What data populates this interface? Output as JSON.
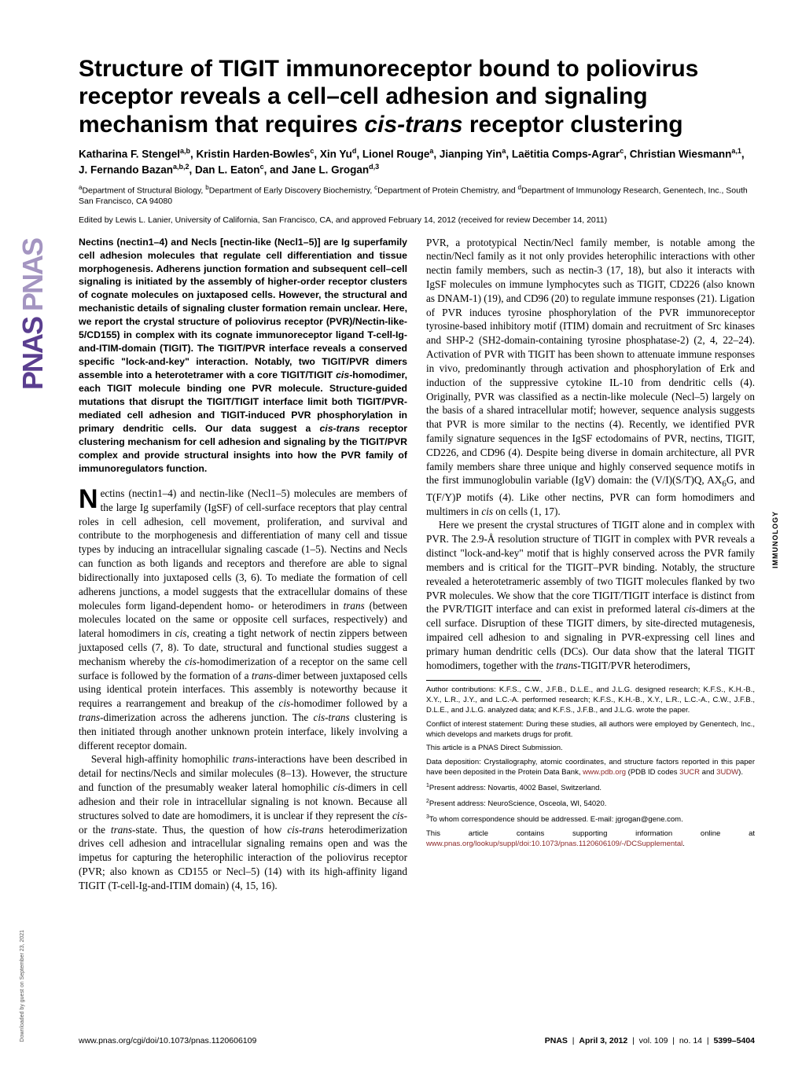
{
  "side_logo": {
    "text": "PNAS",
    "dup": "PNAS"
  },
  "title_pre": "Structure of TIGIT immunoreceptor bound to poliovirus receptor reveals a cell–cell adhesion and signaling mechanism that requires ",
  "title_ital": "cis-trans",
  "title_post": " receptor clustering",
  "authors_html": "Katharina F. Stengel<sup>a,b</sup>, Kristin Harden-Bowles<sup>c</sup>, Xin Yu<sup>d</sup>, Lionel Rouge<sup>a</sup>, Jianping Yin<sup>a</sup>, Laëtitia Comps-Agrar<sup>c</sup>, Christian Wiesmann<sup>a,1</sup>, J. Fernando Bazan<sup>a,b,2</sup>, Dan L. Eaton<sup>c</sup>, and Jane L. Grogan<sup>d,3</sup>",
  "affil_html": "<sup>a</sup>Department of Structural Biology, <sup>b</sup>Department of Early Discovery Biochemistry, <sup>c</sup>Department of Protein Chemistry, and <sup>d</sup>Department of Immunology Research, Genentech, Inc., South San Francisco, CA 94080",
  "edited": "Edited by Lewis L. Lanier, University of California, San Francisco, CA, and approved February 14, 2012 (received for review December 14, 2011)",
  "abstract_html": "Nectins (nectin1–4) and Necls [nectin-like (Necl1–5)] are Ig superfamily cell adhesion molecules that regulate cell differentiation and tissue morphogenesis. Adherens junction formation and subsequent cell–cell signaling is initiated by the assembly of higher-order receptor clusters of cognate molecules on juxtaposed cells. However, the structural and mechanistic details of signaling cluster formation remain unclear. Here, we report the crystal structure of poliovirus receptor (PVR)/Nectin-like-5/CD155) in complex with its cognate immunoreceptor ligand T-cell-Ig-and-ITIM-domain (TIGIT). The TIGIT/PVR interface reveals a conserved specific \"lock-and-key\" interaction. Notably, two TIGIT/PVR dimers assemble into a heterotetramer with a core TIGIT/TIGIT <span class='ital'>cis</span>-homodimer, each TIGIT molecule binding one PVR molecule. Structure-guided mutations that disrupt the TIGIT/TIGIT interface limit both TIGIT/PVR-mediated cell adhesion and TIGIT-induced PVR phosphorylation in primary dendritic cells. Our data suggest a <span class='ital'>cis-trans</span> receptor clustering mechanism for cell adhesion and signaling by the TIGIT/PVR complex and provide structural insights into how the PVR family of immunoregulators function.",
  "col1_body_html": "<p class='noindent'><span class='dropcap'>N</span>ectins (nectin1–4) and nectin-like (Necl1–5) molecules are members of the large Ig superfamily (IgSF) of cell-surface receptors that play central roles in cell adhesion, cell movement, proliferation, and survival and contribute to the morphogenesis and differentiation of many cell and tissue types by inducing an intracellular signaling cascade (1–5). Nectins and Necls can function as both ligands and receptors and therefore are able to signal bidirectionally into juxtaposed cells (3, 6). To mediate the formation of cell adherens junctions, a model suggests that the extracellular domains of these molecules form ligand-dependent homo- or heterodimers in <span class='ital'>trans</span> (between molecules located on the same or opposite cell surfaces, respectively) and lateral homodimers in <span class='ital'>cis</span>, creating a tight network of nectin zippers between juxtaposed cells (7, 8). To date, structural and functional studies suggest a mechanism whereby the <span class='ital'>cis</span>-homodimerization of a receptor on the same cell surface is followed by the formation of a <span class='ital'>trans</span>-dimer between juxtaposed cells using identical protein interfaces. This assembly is noteworthy because it requires a rearrangement and breakup of the <span class='ital'>cis</span>-homodimer followed by a <span class='ital'>trans</span>-dimerization across the adherens junction. The <span class='ital'>cis-trans</span> clustering is then initiated through another unknown protein interface, likely involving a different receptor domain.</p><p>Several high-affinity homophilic <span class='ital'>trans</span>-interactions have been described in detail for nectins/Necls and similar molecules (8–13). However, the structure and function of the presumably weaker lateral homophilic <span class='ital'>cis</span>-dimers in cell adhesion and their role in intracellular signaling is not known. Because all structures solved to date are homodimers, it is unclear if they represent the <span class='ital'>cis</span>- or the <span class='ital'>trans</span>-state. Thus, the question of how <span class='ital'>cis-trans</span> heterodimerization drives cell adhesion and intracellular signaling remains open and was the impetus for capturing the heterophilic interaction of the poliovirus receptor (PVR; also known as CD155 or Necl–5) (14) with its high-affinity ligand TIGIT (T-cell-Ig-and-ITIM domain) (4, 15, 16).</p>",
  "col2_body_html": "<p class='noindent'>PVR, a prototypical Nectin/Necl family member, is notable among the nectin/Necl family as it not only provides heterophilic interactions with other nectin family members, such as nectin-3 (17, 18), but also it interacts with IgSF molecules on immune lymphocytes such as TIGIT, CD226 (also known as DNAM-1) (19), and CD96 (20) to regulate immune responses (21). Ligation of PVR induces tyrosine phosphorylation of the PVR immunoreceptor tyrosine-based inhibitory motif (ITIM) domain and recruitment of Src kinases and SHP-2 (SH2-domain-containing tyrosine phosphatase-2) (2, 4, 22–24). Activation of PVR with TIGIT has been shown to attenuate immune responses in vivo, predominantly through activation and phosphorylation of Erk and induction of the suppressive cytokine IL-10 from dendritic cells (4). Originally, PVR was classified as a nectin-like molecule (Necl–5) largely on the basis of a shared intracellular motif; however, sequence analysis suggests that PVR is more similar to the nectins (4). Recently, we identified PVR family signature sequences in the IgSF ectodomains of PVR, nectins, TIGIT, CD226, and CD96 (4). Despite being diverse in domain architecture, all PVR family members share three unique and highly conserved sequence motifs in the first immunoglobulin variable (IgV) domain: the (V/I)(S/T)Q, AX<sub>6</sub>G, and T(F/Y)P motifs (4). Like other nectins, PVR can form homodimers and multimers in <span class='ital'>cis</span> on cells (1, 17).</p><p>Here we present the crystal structures of TIGIT alone and in complex with PVR. The 2.9-Å resolution structure of TIGIT in complex with PVR reveals a distinct \"lock-and-key\" motif that is highly conserved across the PVR family members and is critical for the TIGIT–PVR binding. Notably, the structure revealed a heterotetrameric assembly of two TIGIT molecules flanked by two PVR molecules. We show that the core TIGIT/TIGIT interface is distinct from the PVR/TIGIT interface and can exist in preformed lateral <span class='ital'>cis</span>-dimers at the cell surface. Disruption of these TIGIT dimers, by site-directed mutagenesis, impaired cell adhesion to and signaling in PVR-expressing cell lines and primary human dendritic cells (DCs). Our data show that the lateral TIGIT homodimers, together with the <span class='ital'>trans</span>-TIGIT/PVR heterodimers,</p>",
  "footnotes": {
    "contrib": "Author contributions: K.F.S., C.W., J.F.B., D.L.E., and J.L.G. designed research; K.F.S., K.H.-B., X.Y., L.R., J.Y., and L.C.-A. performed research; K.F.S., K.H.-B., X.Y., L.R., L.C.-A., C.W., J.F.B., D.L.E., and J.L.G. analyzed data; and K.F.S., J.F.B., and J.L.G. wrote the paper.",
    "conflict": "Conflict of interest statement: During these studies, all authors were employed by Genentech, Inc., which develops and markets drugs for profit.",
    "direct": "This article is a PNAS Direct Submission.",
    "data_pre": "Data deposition: Crystallography, atomic coordinates, and structure factors reported in this paper have been deposited in the Protein Data Bank, ",
    "data_link1": "www.pdb.org",
    "data_mid": " (PDB ID codes ",
    "data_link2": "3UCR",
    "data_and": " and ",
    "data_link3": "3UDW",
    "data_post": ").",
    "addr1": "Present address: Novartis, 4002 Basel, Switzerland.",
    "addr2": "Present address: NeuroScience, Osceola, WI, 54020.",
    "corr": "To whom correspondence should be addressed. E-mail: jgrogan@gene.com.",
    "supp_pre": "This article contains supporting information online at ",
    "supp_link": "www.pnas.org/lookup/suppl/doi:10.1073/pnas.1120606109/-/DCSupplemental",
    "supp_post": "."
  },
  "section_tab": "IMMUNOLOGY",
  "footer": {
    "left": "www.pnas.org/cgi/doi/10.1073/pnas.1120606109",
    "right_pnas": "PNAS",
    "right_date": "April 3, 2012",
    "right_vol": "vol. 109",
    "right_no": "no. 14",
    "right_pages": "5399–5404"
  },
  "download_note": "Downloaded by guest on September 23, 2021",
  "colors": {
    "link": "#8b2828",
    "logo": "#5a3e8f"
  }
}
